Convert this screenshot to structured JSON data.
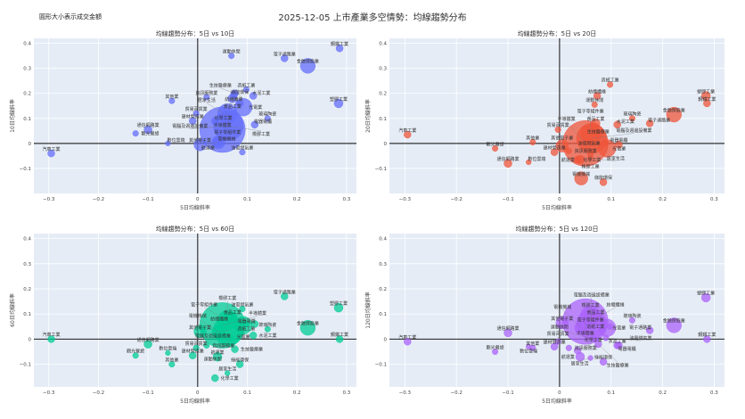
{
  "header": {
    "title": "2025-12-05 上市產業多空情勢：均線趨勢分布",
    "note": "圓形大小表示成交金額"
  },
  "chart_data": [
    {
      "type": "scatter",
      "title": "均線趨勢分布：5日 vs 10日",
      "xlabel": "5日均線斜率",
      "ylabel": "10日均線斜率",
      "yKey": "y10",
      "color": "#636efa",
      "xlim": [
        -0.33,
        0.32
      ],
      "ylim": [
        -0.2,
        0.42
      ],
      "grid": true
    },
    {
      "type": "scatter",
      "title": "均線趨勢分布：5日 vs 20日",
      "xlabel": "5日均線斜率",
      "ylabel": "20日均線斜率",
      "yKey": "y20",
      "color": "#ef553b",
      "xlim": [
        -0.33,
        0.32
      ],
      "ylim": [
        -0.2,
        0.42
      ],
      "grid": true
    },
    {
      "type": "scatter",
      "title": "均線趨勢分布：5日 vs 60日",
      "xlabel": "5日均線斜率",
      "ylabel": "60日均線斜率",
      "yKey": "y60",
      "color": "#00cc96",
      "xlim": [
        -0.33,
        0.32
      ],
      "ylim": [
        -0.19,
        0.42
      ],
      "grid": true
    },
    {
      "type": "scatter",
      "title": "均線趨勢分布：5日 vs 120日",
      "xlabel": "5日均線斜率",
      "ylabel": "120日均線斜率",
      "yKey": "y120",
      "color": "#ab63fa",
      "xlim": [
        -0.33,
        0.32
      ],
      "ylim": [
        -0.19,
        0.42
      ],
      "grid": true
    }
  ],
  "xticks": [
    -0.3,
    -0.2,
    -0.1,
    0,
    0.1,
    0.2,
    0.3
  ],
  "yticks": [
    -0.1,
    0,
    0.1,
    0.2,
    0.3,
    0.4
  ],
  "industries": [
    {
      "name": "水泥工業",
      "x": 0.112,
      "y10": 0.19,
      "y20": 0.075,
      "y60": 0.015,
      "y120": -0.025,
      "size": 1
    },
    {
      "name": "食品工業",
      "x": 0.07,
      "y10": 0.18,
      "y20": 0.08,
      "y60": 0.09,
      "y120": 0.09,
      "size": 2
    },
    {
      "name": "塑膠工業",
      "x": 0.284,
      "y10": 0.16,
      "y20": 0.19,
      "y60": 0.125,
      "y120": 0.165,
      "size": 2
    },
    {
      "name": "紡織纖維",
      "x": 0.073,
      "y10": 0.195,
      "y20": 0.19,
      "y60": 0.08,
      "y120": 0.085,
      "size": 1
    },
    {
      "name": "電機機械",
      "x": 0.042,
      "y10": 0.005,
      "y20": -0.14,
      "y60": 0.03,
      "y120": 0.045,
      "size": 6
    },
    {
      "name": "電器電纜",
      "x": 0.115,
      "y10": 0.075,
      "y20": -0.005,
      "y60": 0.06,
      "y120": -0.025,
      "size": 1
    },
    {
      "name": "化學工業",
      "x": 0.035,
      "y10": 0.09,
      "y20": -0.065,
      "y60": -0.155,
      "y120": -0.045,
      "size": 1
    },
    {
      "name": "生技醫療業",
      "x": 0.075,
      "y10": 0.2,
      "y20": 0.03,
      "y60": -0.04,
      "y120": -0.02,
      "size": 1
    },
    {
      "name": "玻璃陶瓷",
      "x": 0.141,
      "y10": 0.1,
      "y20": 0.1,
      "y60": 0.04,
      "y120": 0.075,
      "size": 0.5
    },
    {
      "name": "造紙工業",
      "x": 0.098,
      "y10": 0.215,
      "y20": 0.235,
      "y60": 0.06,
      "y120": 0.05,
      "size": 0.5
    },
    {
      "name": "鋼鐵工業",
      "x": 0.286,
      "y10": 0.38,
      "y20": 0.16,
      "y60": 0.0,
      "y120": 0.0,
      "size": 1
    },
    {
      "name": "橡膠工業",
      "x": 0.06,
      "y10": 0.07,
      "y20": -0.045,
      "y60": 0.09,
      "y120": 0.075,
      "size": 0.5
    },
    {
      "name": "汽車工業",
      "x": -0.295,
      "y10": -0.04,
      "y20": 0.035,
      "y60": 0.0,
      "y120": -0.01,
      "size": 1
    },
    {
      "name": "半導體業",
      "x": 0.05,
      "y10": 0.055,
      "y20": 0.0,
      "y60": 0.055,
      "y120": 0.07,
      "size": 100
    },
    {
      "name": "電腦及週邊設備業",
      "x": 0.062,
      "y10": 0.07,
      "y20": 0.02,
      "y60": 0.035,
      "y120": 0.06,
      "size": 40
    },
    {
      "name": "光電業",
      "x": 0.092,
      "y10": 0.145,
      "y20": -0.02,
      "y60": 0.055,
      "y120": 0.045,
      "size": 12
    },
    {
      "name": "通信網路業",
      "x": -0.1,
      "y10": 0.055,
      "y20": -0.08,
      "y60": -0.02,
      "y120": 0.025,
      "size": 1.5
    },
    {
      "name": "電子零組件業",
      "x": 0.06,
      "y10": 0.12,
      "y20": 0.04,
      "y60": 0.075,
      "y120": 0.095,
      "size": 15
    },
    {
      "name": "電子通路業",
      "x": 0.175,
      "y10": 0.34,
      "y20": 0.08,
      "y60": 0.17,
      "y120": 0.035,
      "size": 1
    },
    {
      "name": "資訊服務業",
      "x": 0.018,
      "y10": 0.185,
      "y20": -0.03,
      "y60": -0.025,
      "y120": -0.035,
      "size": 0.5
    },
    {
      "name": "其他電子業",
      "x": 0.005,
      "y10": -0.005,
      "y20": -0.01,
      "y60": 0.03,
      "y120": 0.065,
      "size": 5
    },
    {
      "name": "建材營造業",
      "x": -0.01,
      "y10": 0.09,
      "y20": -0.035,
      "y60": -0.065,
      "y120": -0.03,
      "size": 1
    },
    {
      "name": "航運業",
      "x": 0.04,
      "y10": 0.005,
      "y20": -0.065,
      "y60": -0.07,
      "y120": -0.07,
      "size": 2
    },
    {
      "name": "觀光餐旅",
      "x": -0.125,
      "y10": 0.04,
      "y20": -0.02,
      "y60": -0.065,
      "y120": -0.05,
      "size": 0.5
    },
    {
      "name": "金融保險業",
      "x": 0.222,
      "y10": 0.31,
      "y20": 0.115,
      "y60": 0.045,
      "y120": 0.055,
      "size": 8
    },
    {
      "name": "貿易百貨業",
      "x": -0.003,
      "y10": 0.12,
      "y20": 0.055,
      "y60": -0.035,
      "y120": -0.01,
      "size": 0.5
    },
    {
      "name": "油電燃氣業",
      "x": 0.09,
      "y10": -0.035,
      "y20": 0.0,
      "y60": 0.12,
      "y120": 0.005,
      "size": 0.5
    },
    {
      "name": "其他業",
      "x": -0.052,
      "y10": 0.17,
      "y20": 0.005,
      "y60": -0.1,
      "y120": -0.035,
      "size": 0.5
    },
    {
      "name": "運動休閒",
      "x": 0.068,
      "y10": 0.35,
      "y20": 0.155,
      "y60": 0.005,
      "y120": 0.0,
      "size": 0.5
    },
    {
      "name": "居家生活",
      "x": 0.06,
      "y10": 0.11,
      "y20": -0.06,
      "y60": -0.135,
      "y120": -0.075,
      "size": 0.3
    },
    {
      "name": "數位雲端",
      "x": -0.06,
      "y10": 0.0,
      "y20": -0.075,
      "y60": -0.055,
      "y120": -0.03,
      "size": 0.3
    },
    {
      "name": "綠能環保",
      "x": 0.085,
      "y10": 0.16,
      "y20": -0.155,
      "y60": -0.1,
      "y120": -0.09,
      "size": 1
    }
  ]
}
